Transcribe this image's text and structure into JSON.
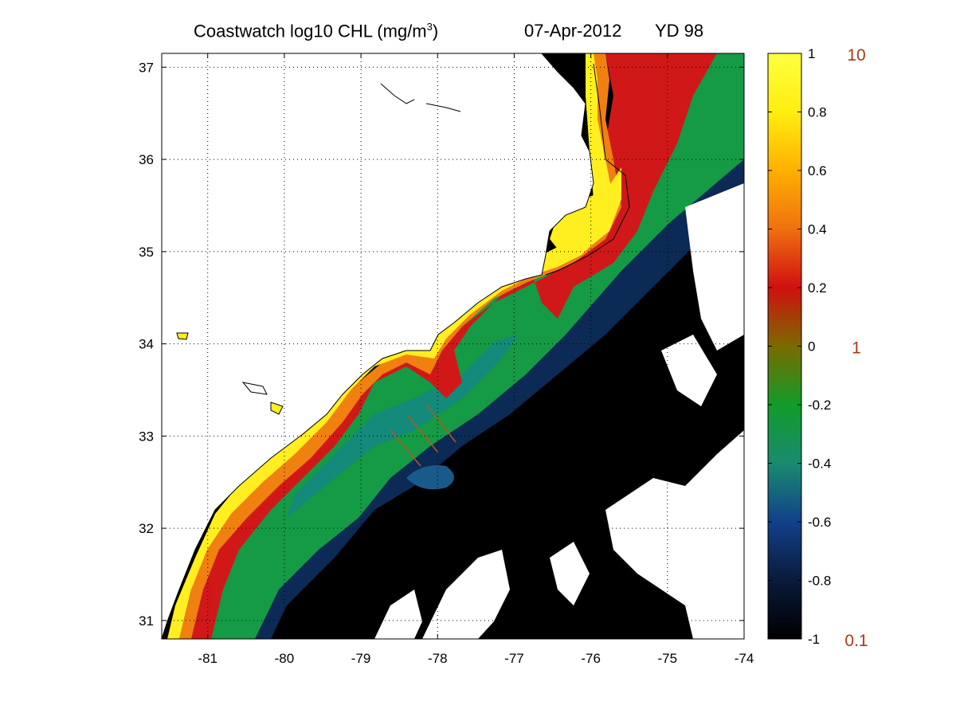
{
  "title": {
    "main_prefix": "Coastwatch  log10  CHL (mg/m",
    "superscript": "3",
    "main_suffix": ")",
    "date": "07-Apr-2012",
    "yearday": "YD 98"
  },
  "map": {
    "lon_range": [
      -81.6,
      -74
    ],
    "lat_range": [
      30.8,
      37.15
    ],
    "x_ticks": [
      "-81",
      "-80",
      "-79",
      "-78",
      "-77",
      "-76",
      "-75",
      "-74"
    ],
    "y_ticks": [
      "31",
      "32",
      "33",
      "34",
      "35",
      "36",
      "37"
    ],
    "grid": "dotted",
    "land_color": "#ffffff",
    "coastline_color": "#000000",
    "cloud_mask_color": "#ffffff",
    "transect_color": "#b05a1e"
  },
  "colorbar": {
    "range": [
      -1,
      1
    ],
    "ticks": [
      "1",
      "0.8",
      "0.6",
      "0.4",
      "0.2",
      "0",
      "-0.2",
      "-0.4",
      "-0.6",
      "-0.8",
      "-1"
    ],
    "linear_labels": [
      "10",
      "1",
      "0.1"
    ],
    "linear_label_color": "#a83a12",
    "colormap": [
      "#000000",
      "#0a1a3a",
      "#12408a",
      "#1a8a70",
      "#119c2a",
      "#7a6a00",
      "#d01010",
      "#f07010",
      "#ffb000",
      "#ffee10",
      "#ffff40"
    ]
  }
}
